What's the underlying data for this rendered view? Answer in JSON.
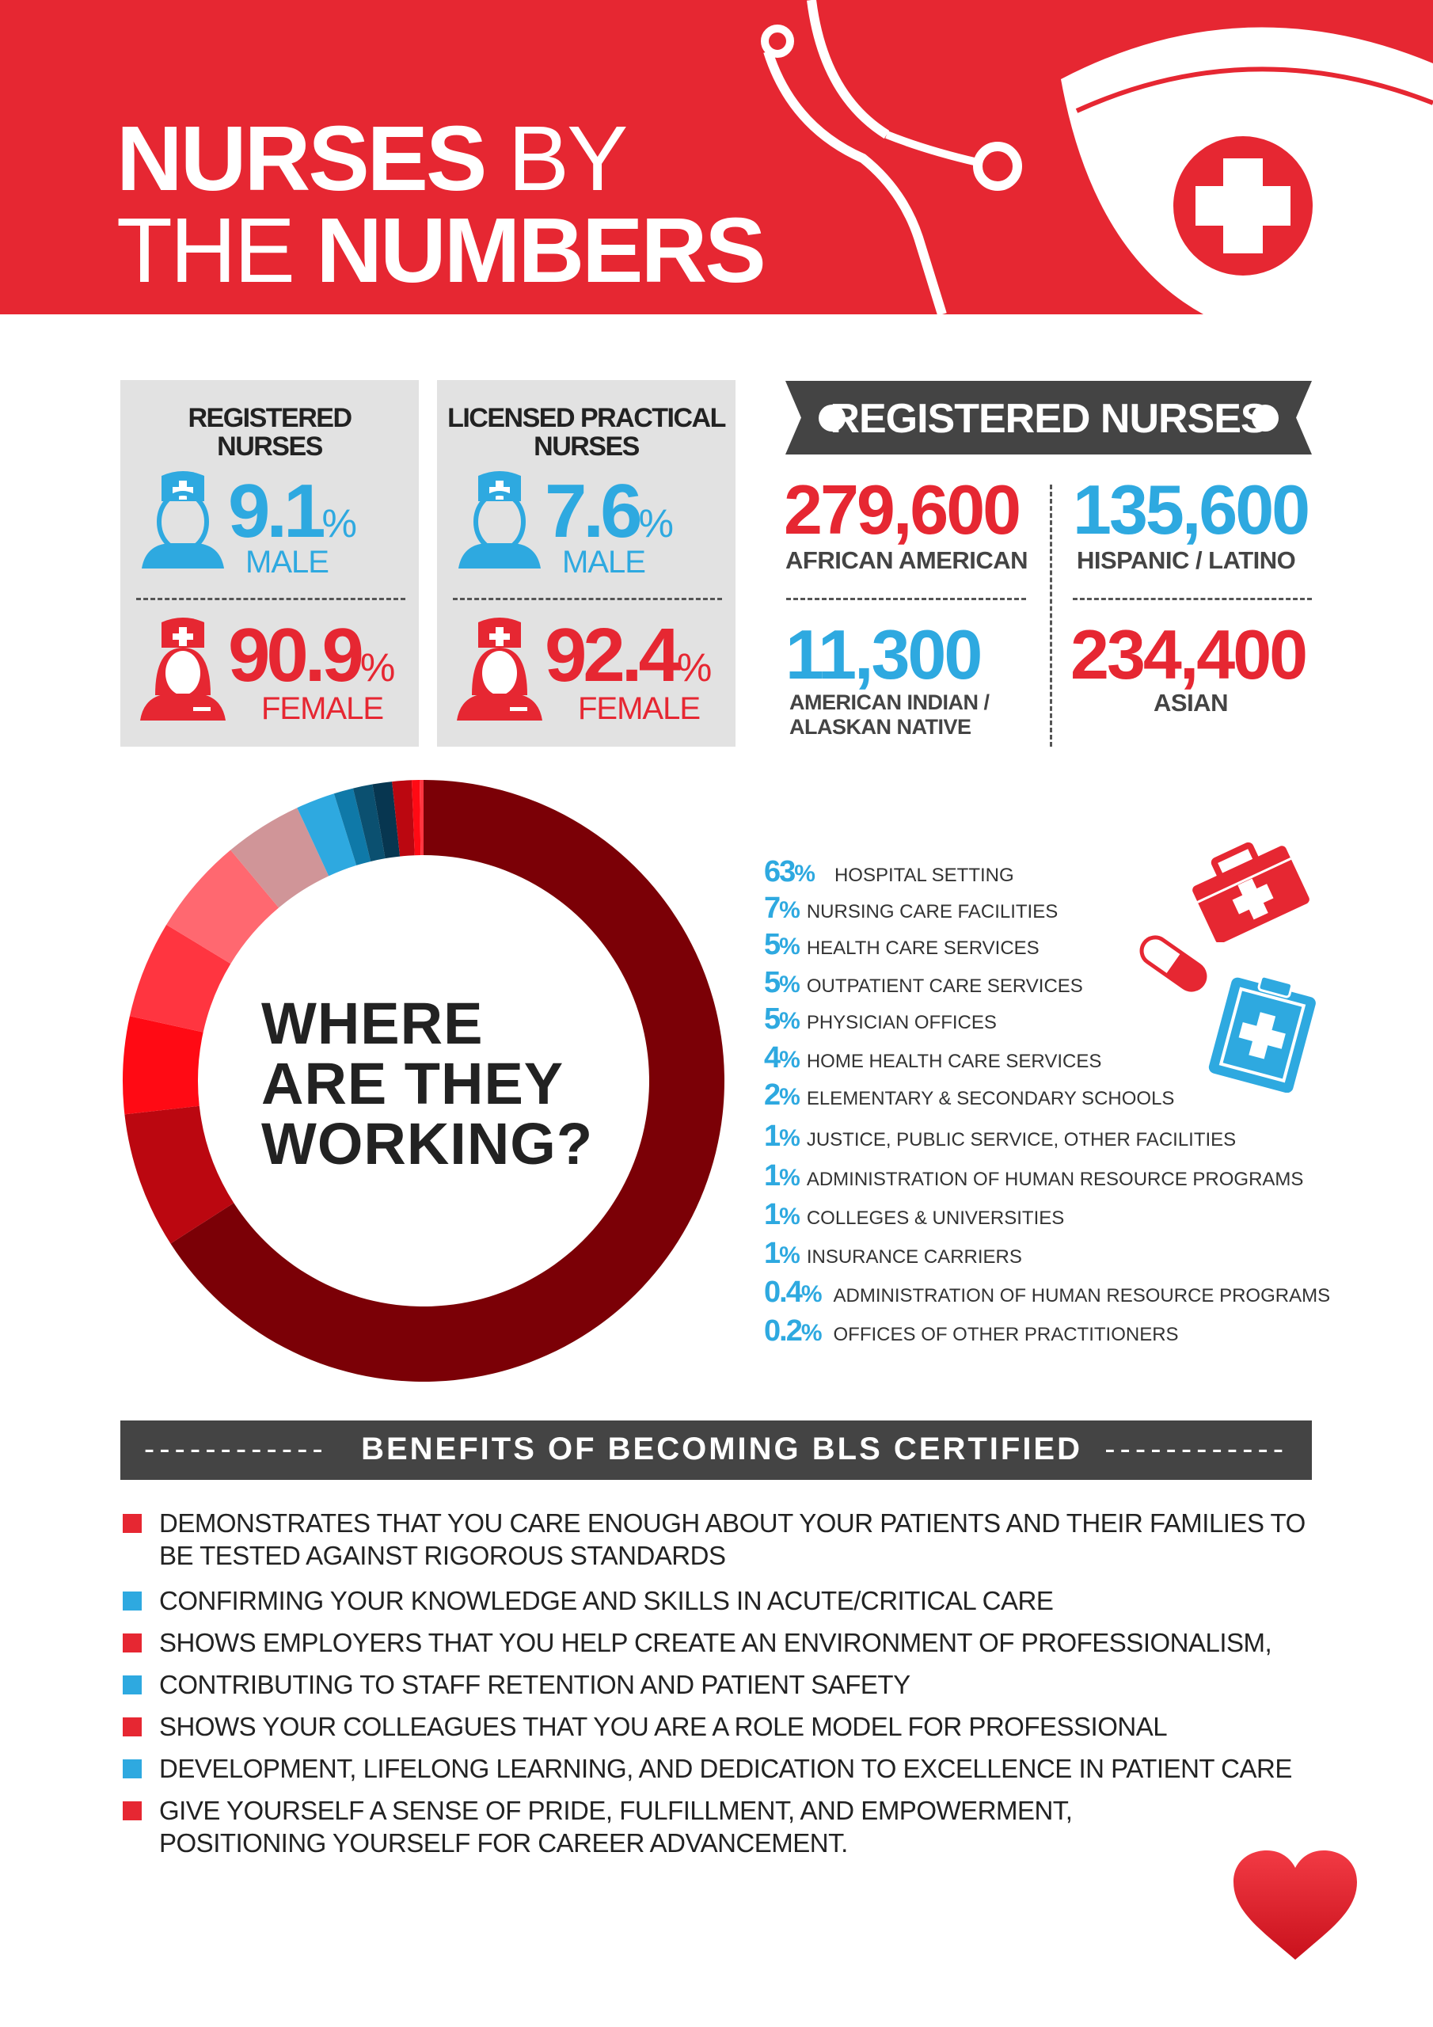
{
  "header": {
    "title_line1_bold": "NURSES",
    "title_line1_light": "BY",
    "title_line2_light": "THE",
    "title_line2_bold": "NUMBERS"
  },
  "gender": [
    {
      "title_line1": "REGISTERED",
      "title_line2": "NURSES",
      "male_value": "9.1",
      "male_label": "MALE",
      "female_value": "90.9",
      "female_label": "FEMALE",
      "pct": "%"
    },
    {
      "title_line1": "LICENSED PRACTICAL",
      "title_line2": "NURSES",
      "male_value": "7.6",
      "male_label": "MALE",
      "female_value": "92.4",
      "female_label": "FEMALE",
      "pct": "%"
    }
  ],
  "registered_nurses": {
    "title": "REGISTERED NURSES",
    "stats": [
      {
        "value": "279,600",
        "label": "AFRICAN AMERICAN",
        "color": "#e62732"
      },
      {
        "value": "135,600",
        "label": "HISPANIC / LATINO",
        "color": "#2ea9e0"
      },
      {
        "value": "11,300",
        "label_line1": "AMERICAN INDIAN /",
        "label_line2": "ALASKAN NATIVE",
        "color": "#2ea9e0"
      },
      {
        "value": "234,400",
        "label": "ASIAN",
        "color": "#e62732"
      }
    ]
  },
  "chart_data": {
    "type": "pie",
    "variant": "donut",
    "title": "WHERE ARE THEY WORKING?",
    "title_lines": [
      "WHERE",
      "ARE THEY",
      "WORKING?"
    ],
    "legend_placement": "right",
    "categories": [
      "HOSPITAL SETTING",
      "NURSING CARE FACILITIES",
      "HEALTH CARE SERVICES",
      "OUTPATIENT CARE SERVICES",
      "PHYSICIAN OFFICES",
      "HOME HEALTH CARE SERVICES",
      "ELEMENTARY & SECONDARY SCHOOLS",
      "JUSTICE, PUBLIC SERVICE, OTHER FACILITIES",
      "ADMINISTRATION OF HUMAN RESOURCE PROGRAMS",
      "COLLEGES & UNIVERSITIES",
      "INSURANCE CARRIERS",
      "ADMINISTRATION OF HUMAN RESOURCE PROGRAMS",
      "OFFICES OF OTHER PRACTITIONERS"
    ],
    "values": [
      63,
      7,
      5,
      5,
      5,
      4,
      2,
      1,
      1,
      1,
      1,
      0.4,
      0.2
    ],
    "labels": [
      "63",
      "7",
      "5",
      "5",
      "5",
      "4",
      "2",
      "1",
      "1",
      "1",
      "1",
      "0.4",
      "0.2"
    ],
    "unit": "%",
    "colors": [
      "#7b0006",
      "#bb0710",
      "#ff0a14",
      "#ff3540",
      "#ff6870",
      "#d09598",
      "#2ea9e0",
      "#0f79a8",
      "#0b5070",
      "#073650",
      "#bb0710",
      "#ff0a14",
      "#ff3540"
    ]
  },
  "benefits": {
    "title": "BENEFITS OF BECOMING BLS CERTIFIED",
    "items": [
      {
        "lines": [
          "DEMONSTRATES THAT YOU CARE ENOUGH ABOUT YOUR PATIENTS AND THEIR FAMILIES TO",
          "BE TESTED AGAINST RIGOROUS STANDARDS"
        ],
        "color": "#e62732"
      },
      {
        "lines": [
          "CONFIRMING YOUR KNOWLEDGE AND SKILLS IN ACUTE/CRITICAL CARE"
        ],
        "color": "#2ea9e0"
      },
      {
        "lines": [
          "SHOWS EMPLOYERS THAT YOU HELP CREATE AN ENVIRONMENT OF PROFESSIONALISM,"
        ],
        "color": "#e62732"
      },
      {
        "lines": [
          "CONTRIBUTING TO STAFF RETENTION AND PATIENT SAFETY"
        ],
        "color": "#2ea9e0"
      },
      {
        "lines": [
          "SHOWS YOUR COLLEAGUES THAT YOU ARE A ROLE MODEL FOR PROFESSIONAL"
        ],
        "color": "#e62732"
      },
      {
        "lines": [
          "DEVELOPMENT, LIFELONG LEARNING, AND DEDICATION TO EXCELLENCE IN PATIENT CARE"
        ],
        "color": "#2ea9e0"
      },
      {
        "lines": [
          "GIVE YOURSELF A SENSE OF PRIDE, FULFILLMENT, AND EMPOWERMENT,",
          "POSITIONING YOURSELF FOR CAREER ADVANCEMENT."
        ],
        "color": "#e62732"
      }
    ]
  },
  "colors": {
    "red": "#e62732",
    "blue": "#2ea9e0",
    "dark": "#444444",
    "grey_box": "#e2e2e2"
  }
}
